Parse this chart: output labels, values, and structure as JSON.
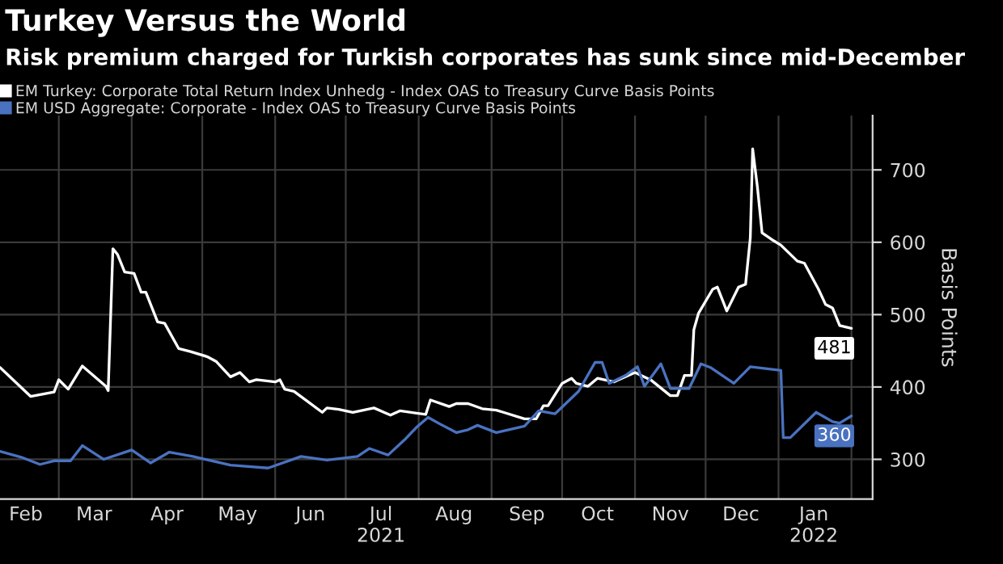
{
  "chart_data": {
    "type": "line",
    "title": "Turkey Versus the World",
    "subtitle": "Risk premium charged for Turkish corporates has sunk since mid-December",
    "ylabel": "Basis Points",
    "xlim": [
      "2021-02-04",
      "2022-02-10"
    ],
    "ylim": [
      245,
      775
    ],
    "yticks": [
      300,
      400,
      500,
      600,
      700
    ],
    "xticks": [
      {
        "value": "2021-03-01",
        "label": null
      },
      {
        "value": "2021-04-01",
        "label": null
      },
      {
        "value": "2021-05-01",
        "label": null
      },
      {
        "value": "2021-06-01",
        "label": null
      },
      {
        "value": "2021-07-01",
        "label": null
      },
      {
        "value": "2021-08-01",
        "label": null
      },
      {
        "value": "2021-09-01",
        "label": null
      },
      {
        "value": "2021-10-01",
        "label": null
      },
      {
        "value": "2021-11-01",
        "label": null
      },
      {
        "value": "2021-12-01",
        "label": null
      },
      {
        "value": "2022-01-01",
        "label": null
      },
      {
        "value": "2022-02-01",
        "label": null
      },
      {
        "value": "2021-02-15",
        "label": "Feb"
      },
      {
        "value": "2021-03-16",
        "label": "Mar"
      },
      {
        "value": "2021-04-16",
        "label": "Apr"
      },
      {
        "value": "2021-05-16",
        "label": "May"
      },
      {
        "value": "2021-06-16",
        "label": "Jun"
      },
      {
        "value": "2021-07-16",
        "label": "Jul\n2021"
      },
      {
        "value": "2021-08-16",
        "label": "Aug"
      },
      {
        "value": "2021-09-16",
        "label": "Sep"
      },
      {
        "value": "2021-10-16",
        "label": "Oct"
      },
      {
        "value": "2021-11-16",
        "label": "Nov"
      },
      {
        "value": "2021-12-16",
        "label": "Dec"
      },
      {
        "value": "2022-01-16",
        "label": "Jan\n2022"
      }
    ],
    "grid": true,
    "legend": "top left",
    "line_style": "solid",
    "marker": "none",
    "series": [
      {
        "name": "EM Turkey: Corporate Total Return Index Unhedg - Index OAS to Treasury Curve Basis Points",
        "color": "#ffffff",
        "x": [
          "2021-02-04",
          "2021-02-17",
          "2021-02-27",
          "2021-03-01",
          "2021-03-05",
          "2021-03-11",
          "2021-03-21",
          "2021-03-22",
          "2021-03-24",
          "2021-03-26",
          "2021-03-29",
          "2021-04-02",
          "2021-04-05",
          "2021-04-07",
          "2021-04-12",
          "2021-04-15",
          "2021-04-21",
          "2021-04-26",
          "2021-05-03",
          "2021-05-07",
          "2021-05-13",
          "2021-05-17",
          "2021-05-21",
          "2021-05-24",
          "2021-06-01",
          "2021-06-03",
          "2021-06-05",
          "2021-06-09",
          "2021-06-14",
          "2021-06-21",
          "2021-06-23",
          "2021-06-28",
          "2021-07-04",
          "2021-07-13",
          "2021-07-20",
          "2021-07-24",
          "2021-08-04",
          "2021-08-06",
          "2021-08-14",
          "2021-08-17",
          "2021-08-22",
          "2021-08-28",
          "2021-09-03",
          "2021-09-06",
          "2021-09-15",
          "2021-09-20",
          "2021-09-23",
          "2021-09-25",
          "2021-10-01",
          "2021-10-05",
          "2021-10-07",
          "2021-10-12",
          "2021-10-16",
          "2021-10-23",
          "2021-11-01",
          "2021-11-08",
          "2021-11-16",
          "2021-11-19",
          "2021-11-22",
          "2021-11-25",
          "2021-11-26",
          "2021-11-28",
          "2021-12-04",
          "2021-12-06",
          "2021-12-10",
          "2021-12-15",
          "2021-12-18",
          "2021-12-20",
          "2021-12-21",
          "2021-12-23",
          "2021-12-25",
          "2021-12-30",
          "2022-01-02",
          "2022-01-09",
          "2022-01-12",
          "2022-01-18",
          "2022-01-21",
          "2022-01-24",
          "2022-01-27",
          "2022-02-01"
        ],
        "values": [
          427,
          387,
          393,
          410,
          397,
          429,
          401,
          395,
          591,
          583,
          559,
          557,
          531,
          531,
          490,
          488,
          453,
          449,
          442,
          435,
          414,
          420,
          407,
          410,
          407,
          410,
          397,
          394,
          382,
          365,
          371,
          369,
          365,
          371,
          361,
          367,
          362,
          382,
          373,
          377,
          377,
          370,
          368,
          365,
          356,
          356,
          374,
          374,
          405,
          412,
          405,
          401,
          412,
          407,
          420,
          409,
          388,
          388,
          416,
          416,
          479,
          502,
          535,
          538,
          505,
          538,
          542,
          606,
          729,
          677,
          613,
          602,
          596,
          574,
          571,
          535,
          514,
          509,
          485,
          481
        ],
        "value_labels": [
          null,
          null,
          null,
          null,
          null,
          null,
          null,
          null,
          null,
          null,
          null,
          null,
          null,
          null,
          null,
          null,
          null,
          null,
          null,
          null,
          null,
          null,
          null,
          null,
          null,
          null,
          null,
          null,
          null,
          null,
          null,
          null,
          null,
          null,
          null,
          null,
          null,
          null,
          null,
          null,
          null,
          null,
          null,
          null,
          null,
          null,
          null,
          null,
          null,
          null,
          null,
          null,
          null,
          null,
          null,
          null,
          null,
          null,
          null,
          null,
          null,
          null,
          null,
          null,
          null,
          null,
          null,
          null,
          null,
          null,
          null,
          null,
          null,
          null,
          null,
          null,
          null,
          null,
          null,
          "481"
        ]
      },
      {
        "name": "EM USD Aggregate: Corporate - Index OAS to Treasury Curve Basis Points",
        "color": "#4a72c0",
        "x": [
          "2021-02-04",
          "2021-02-13",
          "2021-02-21",
          "2021-02-27",
          "2021-03-06",
          "2021-03-11",
          "2021-03-20",
          "2021-04-01",
          "2021-04-09",
          "2021-04-17",
          "2021-04-27",
          "2021-05-13",
          "2021-05-29",
          "2021-06-12",
          "2021-06-23",
          "2021-07-06",
          "2021-07-11",
          "2021-07-19",
          "2021-07-26",
          "2021-07-31",
          "2021-08-05",
          "2021-08-10",
          "2021-08-17",
          "2021-08-22",
          "2021-08-26",
          "2021-09-03",
          "2021-09-15",
          "2021-09-21",
          "2021-09-28",
          "2021-10-08",
          "2021-10-15",
          "2021-10-18",
          "2021-10-21",
          "2021-10-28",
          "2021-11-02",
          "2021-11-05",
          "2021-11-12",
          "2021-11-16",
          "2021-11-24",
          "2021-11-29",
          "2021-12-03",
          "2021-12-13",
          "2021-12-20",
          "2022-01-02",
          "2022-01-03",
          "2022-01-06",
          "2022-01-17",
          "2022-01-24",
          "2022-01-27",
          "2022-02-01"
        ],
        "values": [
          311,
          303,
          293,
          298,
          298,
          319,
          300,
          313,
          295,
          310,
          304,
          292,
          288,
          304,
          299,
          304,
          315,
          306,
          327,
          344,
          358,
          349,
          337,
          341,
          347,
          337,
          346,
          367,
          363,
          394,
          434,
          434,
          405,
          416,
          428,
          401,
          432,
          398,
          398,
          432,
          427,
          405,
          428,
          423,
          330,
          330,
          365,
          352,
          350,
          360
        ],
        "value_labels": [
          null,
          null,
          null,
          null,
          null,
          null,
          null,
          null,
          null,
          null,
          null,
          null,
          null,
          null,
          null,
          null,
          null,
          null,
          null,
          null,
          null,
          null,
          null,
          null,
          null,
          null,
          null,
          null,
          null,
          null,
          null,
          null,
          null,
          null,
          null,
          null,
          null,
          null,
          null,
          null,
          null,
          null,
          null,
          null,
          null,
          null,
          null,
          null,
          null,
          "360"
        ]
      }
    ]
  }
}
